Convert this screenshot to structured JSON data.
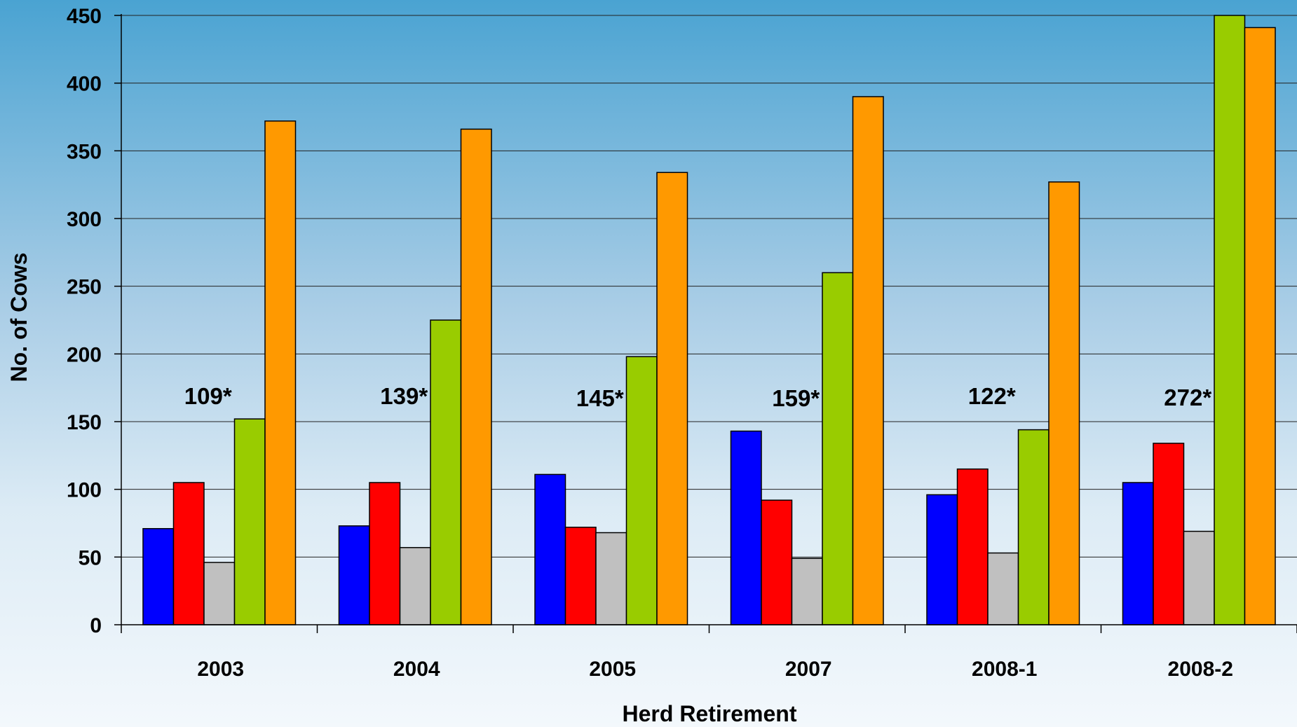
{
  "chart_data": {
    "type": "bar",
    "title": "",
    "xlabel": "Herd Retirement",
    "ylabel": "No. of Cows",
    "ylim": [
      0,
      450
    ],
    "yticks": [
      0,
      50,
      100,
      150,
      200,
      250,
      300,
      350,
      400,
      450
    ],
    "grid": true,
    "categories": [
      "2003",
      "2004",
      "2005",
      "2007",
      "2008-1",
      "2008-2"
    ],
    "annotations": [
      "109*",
      "139*",
      "145*",
      "159*",
      "122*",
      "272*"
    ],
    "series": [
      {
        "color": "#0000ff",
        "values": [
          71,
          73,
          111,
          143,
          96,
          105
        ]
      },
      {
        "color": "#ff0000",
        "values": [
          105,
          105,
          72,
          92,
          115,
          134
        ]
      },
      {
        "color": "#c0c0c0",
        "values": [
          46,
          57,
          68,
          49,
          53,
          69
        ]
      },
      {
        "color": "#99cc00",
        "values": [
          152,
          225,
          198,
          260,
          144,
          450
        ]
      },
      {
        "color": "#ff9900",
        "values": [
          372,
          366,
          334,
          390,
          327,
          441
        ]
      }
    ]
  }
}
